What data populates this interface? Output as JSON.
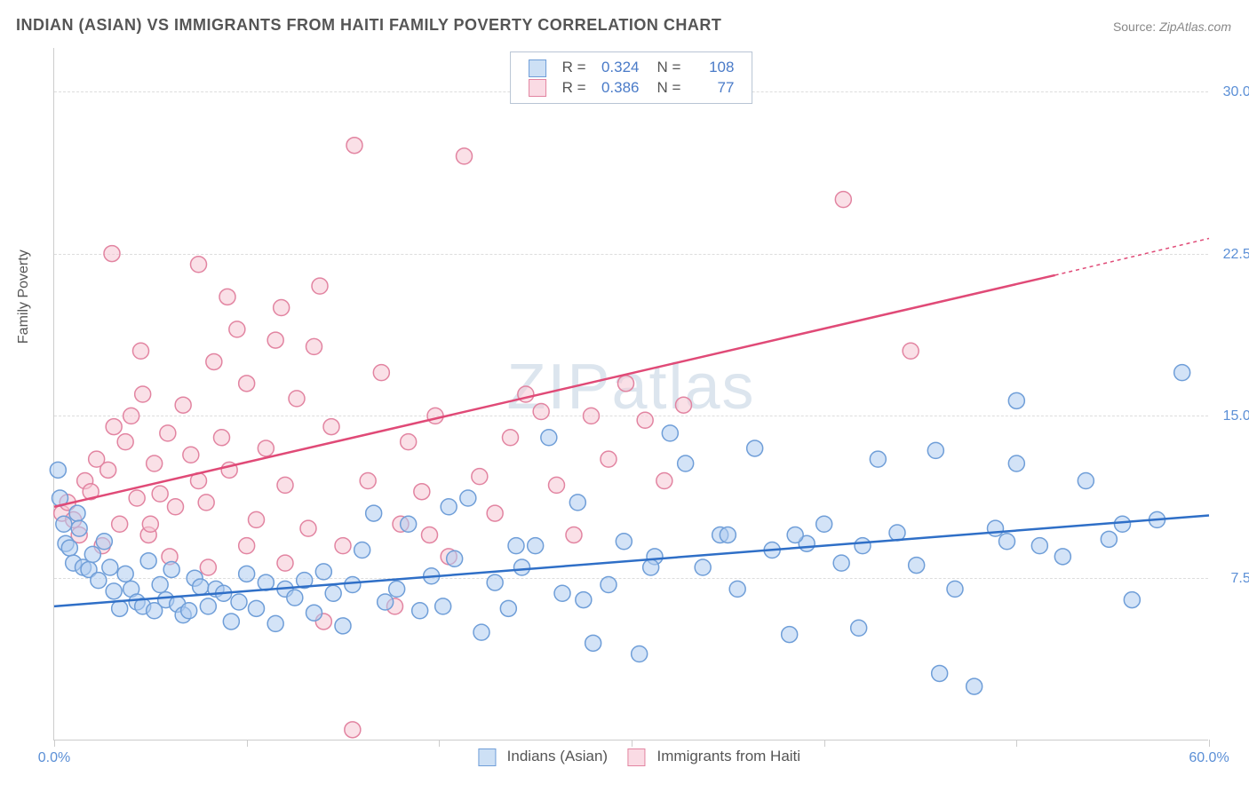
{
  "title": "INDIAN (ASIAN) VS IMMIGRANTS FROM HAITI FAMILY POVERTY CORRELATION CHART",
  "source_label": "Source:",
  "source_value": "ZipAtlas.com",
  "y_axis_label": "Family Poverty",
  "watermark": "ZIPatlas",
  "chart": {
    "type": "scatter",
    "xlim": [
      0,
      60
    ],
    "ylim": [
      0,
      32
    ],
    "y_ticks": [
      7.5,
      15.0,
      22.5,
      30.0
    ],
    "y_tick_labels": [
      "7.5%",
      "15.0%",
      "22.5%",
      "30.0%"
    ],
    "x_ticks": [
      0,
      10,
      20,
      30,
      40,
      50,
      60
    ],
    "x_tick_labels_shown": {
      "0": "0.0%",
      "60": "60.0%"
    },
    "background_color": "#ffffff",
    "grid_color": "#dddddd",
    "axis_color": "#cccccc",
    "tick_label_color": "#5b8fd6",
    "marker_radius": 9,
    "marker_stroke_width": 1.5,
    "trend_line_width": 2.5
  },
  "series": [
    {
      "name": "Indians (Asian)",
      "color_fill": "#aeccf0",
      "color_stroke": "#6f9ed8",
      "swatch_fill": "#cde0f5",
      "swatch_stroke": "#6f9ed8",
      "R": "0.324",
      "N": "108",
      "trend": {
        "x1": 0,
        "y1": 6.2,
        "x2": 60,
        "y2": 10.4,
        "color": "#2f6fc7"
      },
      "points": [
        [
          0.2,
          12.5
        ],
        [
          0.3,
          11.2
        ],
        [
          0.5,
          10.0
        ],
        [
          0.6,
          9.1
        ],
        [
          0.8,
          8.9
        ],
        [
          1.0,
          8.2
        ],
        [
          1.2,
          10.5
        ],
        [
          1.3,
          9.8
        ],
        [
          1.5,
          8.0
        ],
        [
          1.8,
          7.9
        ],
        [
          2.0,
          8.6
        ],
        [
          2.3,
          7.4
        ],
        [
          2.6,
          9.2
        ],
        [
          2.9,
          8.0
        ],
        [
          3.1,
          6.9
        ],
        [
          3.4,
          6.1
        ],
        [
          3.7,
          7.7
        ],
        [
          4.0,
          7.0
        ],
        [
          4.3,
          6.4
        ],
        [
          4.6,
          6.2
        ],
        [
          4.9,
          8.3
        ],
        [
          5.2,
          6.0
        ],
        [
          5.5,
          7.2
        ],
        [
          5.8,
          6.5
        ],
        [
          6.1,
          7.9
        ],
        [
          6.4,
          6.3
        ],
        [
          6.7,
          5.8
        ],
        [
          7.0,
          6.0
        ],
        [
          7.3,
          7.5
        ],
        [
          7.6,
          7.1
        ],
        [
          8.0,
          6.2
        ],
        [
          8.4,
          7.0
        ],
        [
          8.8,
          6.8
        ],
        [
          9.2,
          5.5
        ],
        [
          9.6,
          6.4
        ],
        [
          10.0,
          7.7
        ],
        [
          10.5,
          6.1
        ],
        [
          11.0,
          7.3
        ],
        [
          11.5,
          5.4
        ],
        [
          12.0,
          7.0
        ],
        [
          12.5,
          6.6
        ],
        [
          13.0,
          7.4
        ],
        [
          13.5,
          5.9
        ],
        [
          14.0,
          7.8
        ],
        [
          14.5,
          6.8
        ],
        [
          15.0,
          5.3
        ],
        [
          15.5,
          7.2
        ],
        [
          16.0,
          8.8
        ],
        [
          16.6,
          10.5
        ],
        [
          17.2,
          6.4
        ],
        [
          17.8,
          7.0
        ],
        [
          18.4,
          10.0
        ],
        [
          19.0,
          6.0
        ],
        [
          19.6,
          7.6
        ],
        [
          20.2,
          6.2
        ],
        [
          20.8,
          8.4
        ],
        [
          21.5,
          11.2
        ],
        [
          22.2,
          5.0
        ],
        [
          22.9,
          7.3
        ],
        [
          23.6,
          6.1
        ],
        [
          24.3,
          8.0
        ],
        [
          25.0,
          9.0
        ],
        [
          25.7,
          14.0
        ],
        [
          26.4,
          6.8
        ],
        [
          27.2,
          11.0
        ],
        [
          28.0,
          4.5
        ],
        [
          28.8,
          7.2
        ],
        [
          29.6,
          9.2
        ],
        [
          30.4,
          4.0
        ],
        [
          31.2,
          8.5
        ],
        [
          32.0,
          14.2
        ],
        [
          32.8,
          12.8
        ],
        [
          33.7,
          8.0
        ],
        [
          34.6,
          9.5
        ],
        [
          35.5,
          7.0
        ],
        [
          36.4,
          13.5
        ],
        [
          37.3,
          8.8
        ],
        [
          38.2,
          4.9
        ],
        [
          39.1,
          9.1
        ],
        [
          40.0,
          10.0
        ],
        [
          40.9,
          8.2
        ],
        [
          41.8,
          5.2
        ],
        [
          42.8,
          13.0
        ],
        [
          43.8,
          9.6
        ],
        [
          44.8,
          8.1
        ],
        [
          45.8,
          13.4
        ],
        [
          46.8,
          7.0
        ],
        [
          47.8,
          2.5
        ],
        [
          48.9,
          9.8
        ],
        [
          50.0,
          12.8
        ],
        [
          50.0,
          15.7
        ],
        [
          51.2,
          9.0
        ],
        [
          52.4,
          8.5
        ],
        [
          53.6,
          12.0
        ],
        [
          54.8,
          9.3
        ],
        [
          56.0,
          6.5
        ],
        [
          57.3,
          10.2
        ],
        [
          58.6,
          17.0
        ],
        [
          55.5,
          10.0
        ],
        [
          49.5,
          9.2
        ],
        [
          46.0,
          3.1
        ],
        [
          42.0,
          9.0
        ],
        [
          38.5,
          9.5
        ],
        [
          35.0,
          9.5
        ],
        [
          31.0,
          8.0
        ],
        [
          27.5,
          6.5
        ],
        [
          24.0,
          9.0
        ],
        [
          20.5,
          10.8
        ]
      ]
    },
    {
      "name": "Immigrants from Haiti",
      "color_fill": "#f5c6d3",
      "color_stroke": "#e284a1",
      "swatch_fill": "#fadbe4",
      "swatch_stroke": "#e284a1",
      "R": "0.386",
      "N": "77",
      "trend": {
        "x1": 0,
        "y1": 10.8,
        "x2": 52,
        "y2": 21.5,
        "dashed_to_x": 60,
        "dashed_to_y": 23.2,
        "color": "#e04a77"
      },
      "points": [
        [
          0.4,
          10.5
        ],
        [
          0.7,
          11.0
        ],
        [
          1.0,
          10.2
        ],
        [
          1.3,
          9.5
        ],
        [
          1.6,
          12.0
        ],
        [
          1.9,
          11.5
        ],
        [
          2.2,
          13.0
        ],
        [
          2.5,
          9.0
        ],
        [
          2.8,
          12.5
        ],
        [
          3.1,
          14.5
        ],
        [
          3.4,
          10.0
        ],
        [
          3.7,
          13.8
        ],
        [
          4.0,
          15.0
        ],
        [
          4.3,
          11.2
        ],
        [
          4.6,
          16.0
        ],
        [
          4.9,
          9.5
        ],
        [
          5.2,
          12.8
        ],
        [
          5.5,
          11.4
        ],
        [
          5.9,
          14.2
        ],
        [
          6.3,
          10.8
        ],
        [
          6.7,
          15.5
        ],
        [
          7.1,
          13.2
        ],
        [
          7.5,
          22.0
        ],
        [
          7.9,
          11.0
        ],
        [
          8.3,
          17.5
        ],
        [
          8.7,
          14.0
        ],
        [
          9.1,
          12.5
        ],
        [
          9.5,
          19.0
        ],
        [
          10.0,
          16.5
        ],
        [
          10.5,
          10.2
        ],
        [
          11.0,
          13.5
        ],
        [
          11.5,
          18.5
        ],
        [
          12.0,
          11.8
        ],
        [
          12.6,
          15.8
        ],
        [
          13.2,
          9.8
        ],
        [
          13.8,
          21.0
        ],
        [
          14.4,
          14.5
        ],
        [
          15.0,
          9.0
        ],
        [
          15.6,
          27.5
        ],
        [
          16.3,
          12.0
        ],
        [
          17.0,
          17.0
        ],
        [
          17.7,
          6.2
        ],
        [
          18.4,
          13.8
        ],
        [
          19.1,
          11.5
        ],
        [
          19.8,
          15.0
        ],
        [
          20.5,
          8.5
        ],
        [
          21.3,
          27.0
        ],
        [
          22.1,
          12.2
        ],
        [
          22.9,
          10.5
        ],
        [
          23.7,
          14.0
        ],
        [
          24.5,
          16.0
        ],
        [
          25.3,
          15.2
        ],
        [
          26.1,
          11.8
        ],
        [
          27.0,
          9.5
        ],
        [
          27.9,
          15.0
        ],
        [
          28.8,
          13.0
        ],
        [
          29.7,
          16.5
        ],
        [
          30.7,
          14.8
        ],
        [
          31.7,
          12.0
        ],
        [
          32.7,
          15.5
        ],
        [
          14.0,
          5.5
        ],
        [
          18.0,
          10.0
        ],
        [
          15.5,
          0.5
        ],
        [
          6.0,
          8.5
        ],
        [
          8.0,
          8.0
        ],
        [
          10.0,
          9.0
        ],
        [
          12.0,
          8.2
        ],
        [
          3.0,
          22.5
        ],
        [
          9.0,
          20.5
        ],
        [
          11.8,
          20.0
        ],
        [
          4.5,
          18.0
        ],
        [
          13.5,
          18.2
        ],
        [
          41.0,
          25.0
        ],
        [
          44.5,
          18.0
        ],
        [
          5.0,
          10.0
        ],
        [
          7.5,
          12.0
        ],
        [
          19.5,
          9.5
        ]
      ]
    }
  ],
  "legend_top": {
    "r_label": "R =",
    "n_label": "N ="
  },
  "legend_bottom": {
    "items": [
      "Indians (Asian)",
      "Immigrants from Haiti"
    ]
  }
}
